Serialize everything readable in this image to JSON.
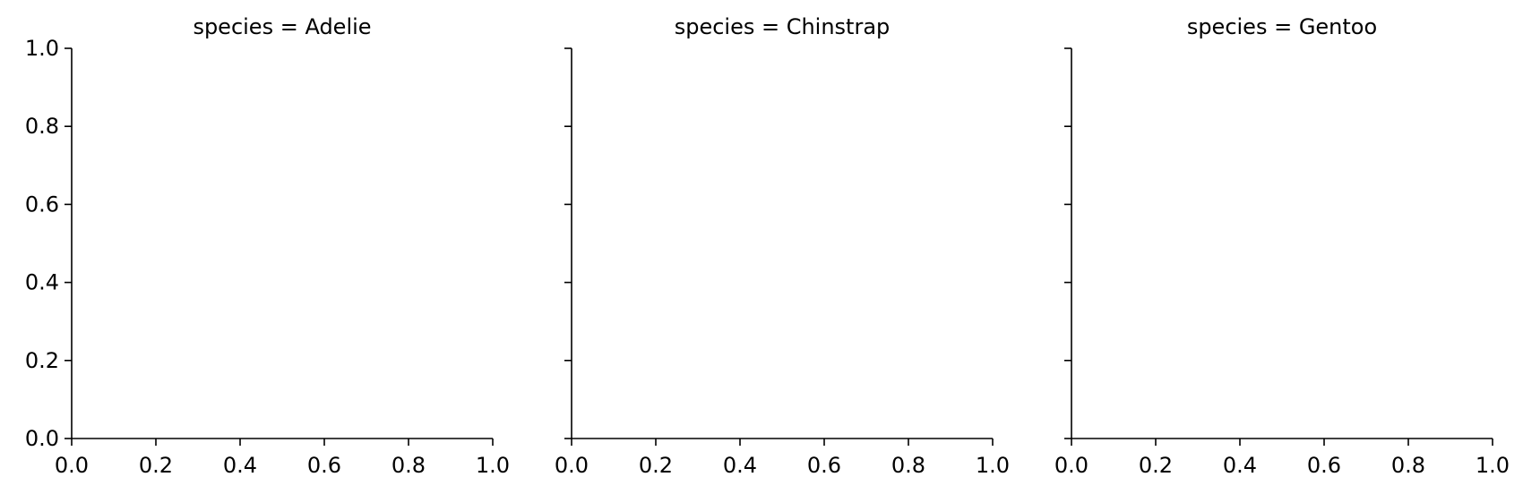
{
  "chart_data": [
    {
      "type": "scatter",
      "title": "species = Adelie",
      "xlabel": "",
      "ylabel": "",
      "xlim": [
        0.0,
        1.0
      ],
      "ylim": [
        0.0,
        1.0
      ],
      "xticks": [
        "0.0",
        "0.2",
        "0.4",
        "0.6",
        "0.8",
        "1.0"
      ],
      "yticks": [
        "0.0",
        "0.2",
        "0.4",
        "0.6",
        "0.8",
        "1.0"
      ],
      "show_ytick_labels": true,
      "series": [],
      "grid": false,
      "spines": [
        "left",
        "bottom"
      ]
    },
    {
      "type": "scatter",
      "title": "species = Chinstrap",
      "xlabel": "",
      "ylabel": "",
      "xlim": [
        0.0,
        1.0
      ],
      "ylim": [
        0.0,
        1.0
      ],
      "xticks": [
        "0.0",
        "0.2",
        "0.4",
        "0.6",
        "0.8",
        "1.0"
      ],
      "yticks": [
        "0.0",
        "0.2",
        "0.4",
        "0.6",
        "0.8",
        "1.0"
      ],
      "show_ytick_labels": false,
      "series": [],
      "grid": false,
      "spines": [
        "left",
        "bottom"
      ]
    },
    {
      "type": "scatter",
      "title": "species = Gentoo",
      "xlabel": "",
      "ylabel": "",
      "xlim": [
        0.0,
        1.0
      ],
      "ylim": [
        0.0,
        1.0
      ],
      "xticks": [
        "0.0",
        "0.2",
        "0.4",
        "0.6",
        "0.8",
        "1.0"
      ],
      "yticks": [
        "0.0",
        "0.2",
        "0.4",
        "0.6",
        "0.8",
        "1.0"
      ],
      "show_ytick_labels": false,
      "series": [],
      "grid": false,
      "spines": [
        "left",
        "bottom"
      ]
    }
  ],
  "colors": {
    "axis": "#000000",
    "background": "#ffffff"
  }
}
